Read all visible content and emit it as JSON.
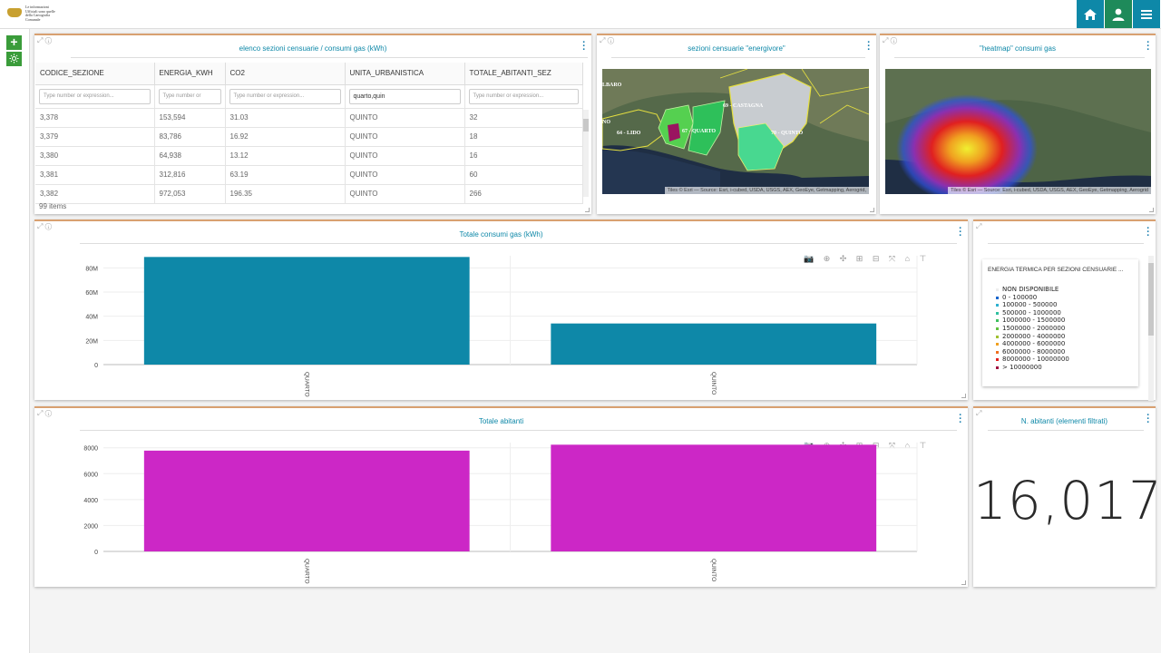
{
  "header": {
    "logo_text": [
      "Le informazioni",
      "Ufficiali sono quelle",
      "della Cartografia",
      "Comunale"
    ]
  },
  "table_panel": {
    "title": "elenco sezioni censuarie / consumi gas (kWh)",
    "columns": [
      "CODICE_SEZIONE",
      "ENERGIA_KWH",
      "CO2",
      "UNITA_URBANISTICA",
      "TOTALE_ABITANTI_SEZ"
    ],
    "filters": [
      "Type number or expression...",
      "Type number or",
      "Type number or expression...",
      "quarto,quin",
      "Type number or expression..."
    ],
    "rows": [
      [
        "3,378",
        "153,594",
        "31.03",
        "QUINTO",
        "32"
      ],
      [
        "3,379",
        "83,786",
        "16.92",
        "QUINTO",
        "18"
      ],
      [
        "3,380",
        "64,938",
        "13.12",
        "QUINTO",
        "16"
      ],
      [
        "3,381",
        "312,816",
        "63.19",
        "QUINTO",
        "60"
      ],
      [
        "3,382",
        "972,053",
        "196.35",
        "QUINTO",
        "266"
      ]
    ],
    "items_label": "99 items"
  },
  "map1": {
    "title": "sezioni censuarie \"energivore\"",
    "labels": [
      "LBARO",
      "69 - CASTAGNA",
      "NO",
      "64 - LIDO",
      "67 - QUARTO",
      "70 - QUINTO"
    ],
    "attribution": "Tiles © Esri — Source: Esri, i-cubed, USDA, USGS, AEX, GeoEye, Getmapping, Aerogrid,"
  },
  "map2": {
    "title": "\"heatmap\" consumi gas",
    "attribution": "Tiles © Esri — Source: Esri, i-cubed, USDA, USGS, AEX, GeoEye, Getmapping, Aerogrid"
  },
  "chart_gas": {
    "title": "Totale consumi gas (kWh)",
    "y_ticks": [
      "0",
      "20M",
      "40M",
      "60M",
      "80M"
    ],
    "bar_color": "#0e88a8"
  },
  "chart_abitanti": {
    "title": "Totale abitanti",
    "y_ticks": [
      "0",
      "2000",
      "4000",
      "6000",
      "8000"
    ],
    "bar_color": "#cc27c6"
  },
  "legend": {
    "title": "ENERGIA TERMICA PER SEZIONI CENSUARIE ...",
    "items": [
      {
        "label": "NON DISPONIBILE",
        "color": "#eeeeee"
      },
      {
        "label": "0 - 100000",
        "color": "#1a66cc"
      },
      {
        "label": "100000 - 500000",
        "color": "#2fb0d0"
      },
      {
        "label": "500000 - 1000000",
        "color": "#30c0a0"
      },
      {
        "label": "1000000 - 1500000",
        "color": "#40c060"
      },
      {
        "label": "1500000 - 2000000",
        "color": "#60c040"
      },
      {
        "label": "2000000 - 4000000",
        "color": "#a0c030"
      },
      {
        "label": "4000000 - 6000000",
        "color": "#f0a020"
      },
      {
        "label": "6000000 - 8000000",
        "color": "#f07020"
      },
      {
        "label": "8000000 - 10000000",
        "color": "#e02020"
      },
      {
        "label": ">  10000000",
        "color": "#a01040"
      }
    ]
  },
  "counter": {
    "title": "N. abitanti (elementi filtrati)",
    "value": "16,017"
  },
  "chart_data": [
    {
      "type": "bar",
      "title": "Totale consumi gas (kWh)",
      "categories": [
        "QUARTO",
        "QUINTO"
      ],
      "values": [
        89000000,
        34000000
      ],
      "ylim": [
        0,
        90000000
      ],
      "grid": true
    },
    {
      "type": "bar",
      "title": "Totale abitanti",
      "categories": [
        "QUARTO",
        "QUINTO"
      ],
      "values": [
        7780,
        8237
      ],
      "ylim": [
        0,
        8400
      ],
      "grid": true
    }
  ]
}
